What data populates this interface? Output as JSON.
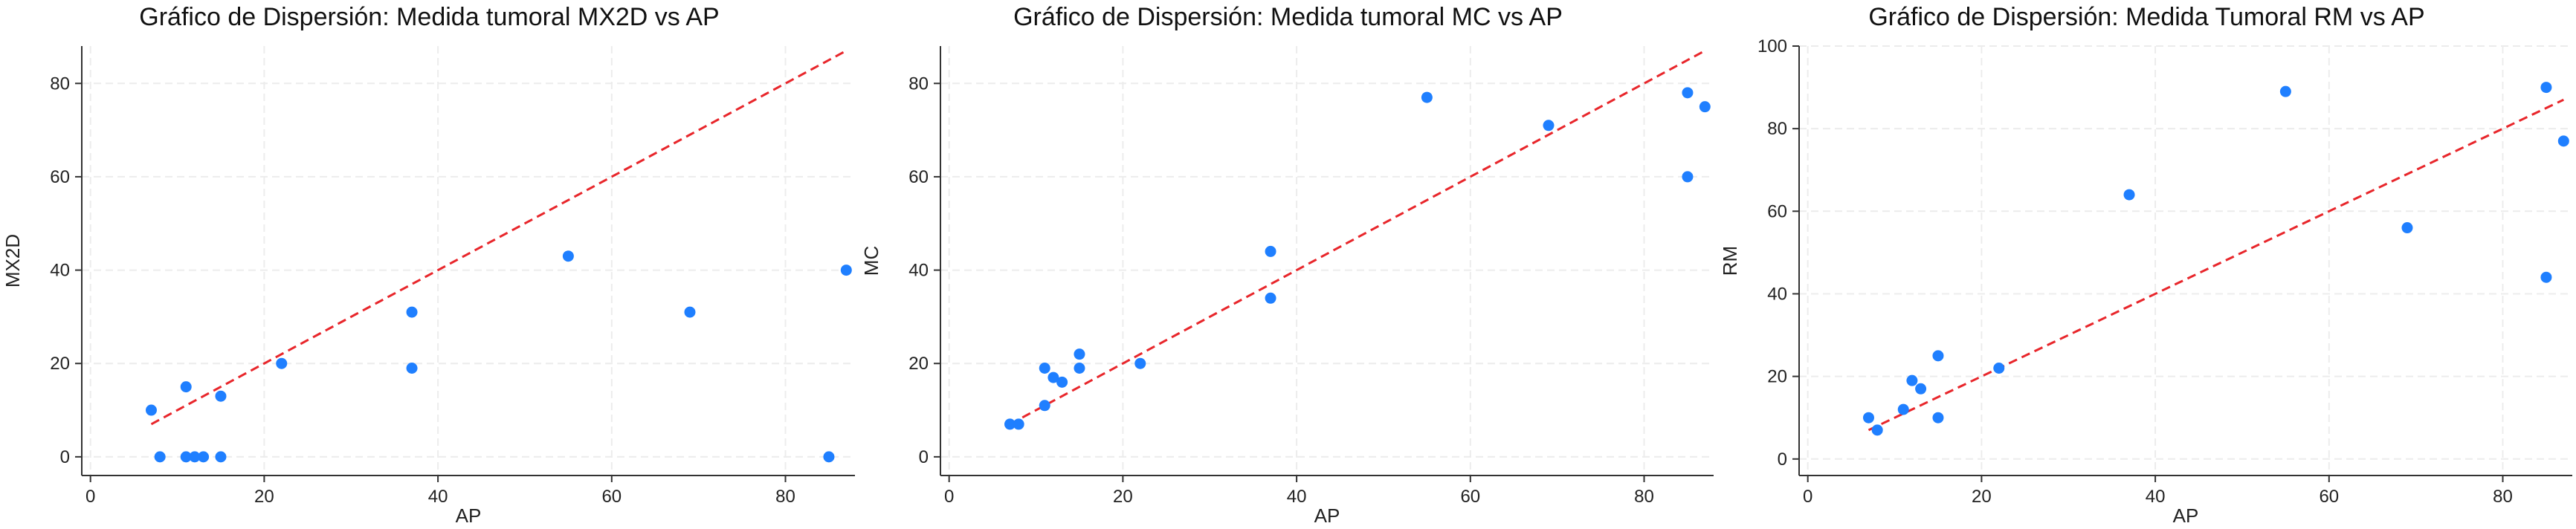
{
  "chart_data": [
    {
      "type": "scatter",
      "title": "Gráfico de Dispersión: Medida tumoral  MX2D vs AP",
      "xlabel": "AP",
      "ylabel": "MX2D",
      "xlim": [
        -1,
        88
      ],
      "ylim": [
        -4,
        88
      ],
      "xticks": [
        0,
        20,
        40,
        60,
        80
      ],
      "yticks": [
        0,
        20,
        40,
        60,
        80
      ],
      "grid": true,
      "point_color": "#1f7fff",
      "line_color": "#e8262b",
      "reference_line": {
        "style": "dashed",
        "from": [
          7,
          7
        ],
        "to": [
          87,
          87
        ]
      },
      "points": [
        {
          "x": 7,
          "y": 10
        },
        {
          "x": 8,
          "y": 0
        },
        {
          "x": 11,
          "y": 15
        },
        {
          "x": 11,
          "y": 0
        },
        {
          "x": 12,
          "y": 0
        },
        {
          "x": 13,
          "y": 0
        },
        {
          "x": 15,
          "y": 13
        },
        {
          "x": 15,
          "y": 0
        },
        {
          "x": 22,
          "y": 20
        },
        {
          "x": 37,
          "y": 31
        },
        {
          "x": 37,
          "y": 19
        },
        {
          "x": 55,
          "y": 43
        },
        {
          "x": 69,
          "y": 31
        },
        {
          "x": 85,
          "y": 0
        },
        {
          "x": 87,
          "y": 40
        }
      ]
    },
    {
      "type": "scatter",
      "title": "Gráfico de Dispersión: Medida tumoral MC vs AP",
      "xlabel": "AP",
      "ylabel": "MC",
      "xlim": [
        -1,
        88
      ],
      "ylim": [
        -4,
        88
      ],
      "xticks": [
        0,
        20,
        40,
        60,
        80
      ],
      "yticks": [
        0,
        20,
        40,
        60,
        80
      ],
      "grid": true,
      "point_color": "#1f7fff",
      "line_color": "#e8262b",
      "reference_line": {
        "style": "dashed",
        "from": [
          7,
          7
        ],
        "to": [
          87,
          87
        ]
      },
      "points": [
        {
          "x": 7,
          "y": 7
        },
        {
          "x": 8,
          "y": 7
        },
        {
          "x": 11,
          "y": 11
        },
        {
          "x": 11,
          "y": 19
        },
        {
          "x": 12,
          "y": 17
        },
        {
          "x": 13,
          "y": 16
        },
        {
          "x": 15,
          "y": 19
        },
        {
          "x": 15,
          "y": 22
        },
        {
          "x": 22,
          "y": 20
        },
        {
          "x": 37,
          "y": 44
        },
        {
          "x": 37,
          "y": 34
        },
        {
          "x": 55,
          "y": 77
        },
        {
          "x": 69,
          "y": 71
        },
        {
          "x": 85,
          "y": 78
        },
        {
          "x": 85,
          "y": 60
        },
        {
          "x": 87,
          "y": 75
        }
      ]
    },
    {
      "type": "scatter",
      "title": "Gráfico de Dispersión: Medida Tumoral RM vs AP",
      "xlabel": "AP",
      "ylabel": "RM",
      "xlim": [
        -1,
        88
      ],
      "ylim": [
        -4,
        100
      ],
      "xticks": [
        0,
        20,
        40,
        60,
        80
      ],
      "yticks": [
        0,
        20,
        40,
        60,
        80,
        100
      ],
      "grid": true,
      "point_color": "#1f7fff",
      "line_color": "#e8262b",
      "reference_line": {
        "style": "dashed",
        "from": [
          7,
          7
        ],
        "to": [
          87,
          87
        ]
      },
      "points": [
        {
          "x": 7,
          "y": 10
        },
        {
          "x": 8,
          "y": 7
        },
        {
          "x": 11,
          "y": 12
        },
        {
          "x": 12,
          "y": 19
        },
        {
          "x": 13,
          "y": 17
        },
        {
          "x": 15,
          "y": 25
        },
        {
          "x": 15,
          "y": 10
        },
        {
          "x": 22,
          "y": 22
        },
        {
          "x": 37,
          "y": 64
        },
        {
          "x": 55,
          "y": 89
        },
        {
          "x": 69,
          "y": 56
        },
        {
          "x": 85,
          "y": 90
        },
        {
          "x": 85,
          "y": 44
        },
        {
          "x": 87,
          "y": 77
        }
      ]
    }
  ]
}
